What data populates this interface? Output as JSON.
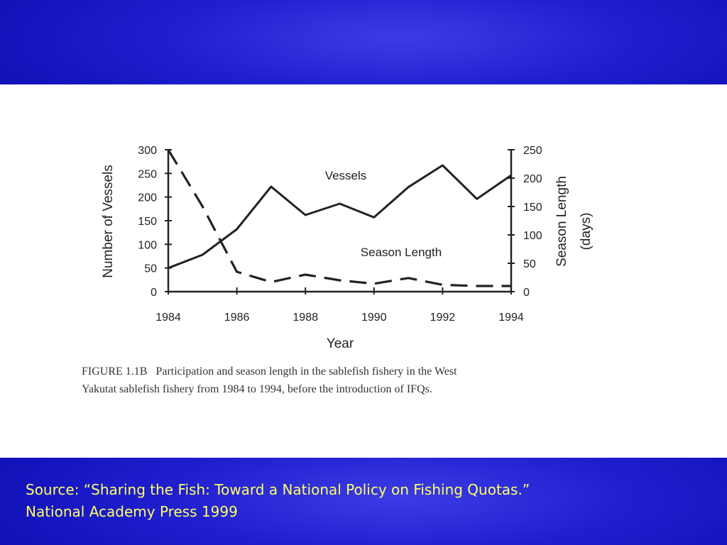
{
  "colors": {
    "band": "#1f1fcf",
    "source_text": "#ffff66",
    "ink": "#222222"
  },
  "source": {
    "line1": "Source: “Sharing the Fish: Toward a National Policy on Fishing Quotas.”",
    "line2": "National Academy Press 1999"
  },
  "figure": {
    "caption_line1": "FIGURE 1.1B   Participation and season length in the sablefish fishery in the West",
    "caption_line2": "Yakutat sablefish fishery from 1984 to 1994, before the introduction of IFQs."
  },
  "chart_data": {
    "type": "line",
    "xlabel": "Year",
    "ylabel_left": "Number of Vessels",
    "ylabel_right_line1": "Season Length",
    "ylabel_right_line2": "(days)",
    "xlim": [
      1984,
      1994
    ],
    "ylim_left": [
      0,
      300
    ],
    "ylim_right": [
      0,
      250
    ],
    "x_ticks": [
      "1984",
      "1986",
      "1988",
      "1990",
      "1992",
      "1994"
    ],
    "left_ticks": [
      "0",
      "50",
      "100",
      "150",
      "200",
      "250",
      "300"
    ],
    "right_ticks": [
      "0",
      "50",
      "100",
      "150",
      "200",
      "250"
    ],
    "grid": false,
    "series": [
      {
        "name": "Vessels",
        "axis": "left",
        "style": "solid",
        "x": [
          1984,
          1985,
          1986,
          1987,
          1988,
          1989,
          1990,
          1991,
          1992,
          1993,
          1994
        ],
        "values": [
          50,
          78,
          132,
          222,
          162,
          186,
          157,
          221,
          267,
          196,
          246
        ]
      },
      {
        "name": "Season Length",
        "axis": "right",
        "style": "dashed",
        "x": [
          1984,
          1985,
          1986,
          1987,
          1988,
          1989,
          1990,
          1991,
          1992,
          1993,
          1994
        ],
        "values": [
          250,
          150,
          35,
          17,
          30,
          20,
          14,
          24,
          12,
          10,
          10
        ]
      }
    ]
  }
}
